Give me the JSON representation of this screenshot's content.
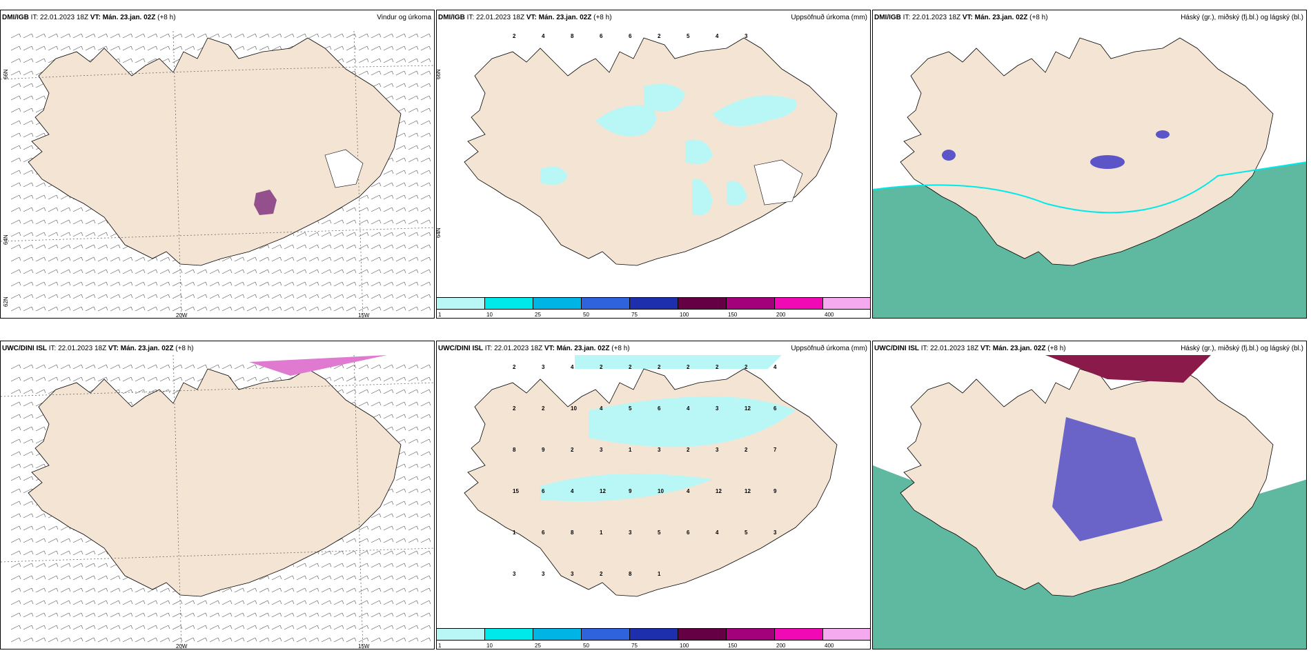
{
  "panels": {
    "p1": {
      "model": "DMI/IGB",
      "it": "IT: 22.01.2023 18Z",
      "vt_label": "VT:",
      "vt_value": "Mán. 23.jan. 02Z",
      "lead": "(+8 h)",
      "title": "Vindur og úrkoma"
    },
    "p2": {
      "model": "DMI/IGB",
      "it": "IT: 22.01.2023 18Z",
      "vt_label": "VT:",
      "vt_value": "Mán. 23.jan. 02Z",
      "lead": "(+8 h)",
      "title": "Uppsöfnuð úrkoma (mm)"
    },
    "p3": {
      "model": "DMI/IGB",
      "it": "IT: 22.01.2023 18Z",
      "vt_label": "VT:",
      "vt_value": "Mán. 23.jan. 02Z",
      "lead": "(+8 h)",
      "title": "Háský (gr.), miðský (fj.bl.) og lágský (bl.)"
    },
    "p4": {
      "model": "UWC/DINI ISL",
      "it": "IT: 22.01.2023 18Z",
      "vt_label": "VT:",
      "vt_value": "Mán. 23.jan. 02Z",
      "lead": "(+8 h)",
      "title": ""
    },
    "p5": {
      "model": "UWC/DINI ISL",
      "it": "IT: 22.01.2023 18Z",
      "vt_label": "VT:",
      "vt_value": "Mán. 23.jan. 02Z",
      "lead": "(+8 h)",
      "title": "Uppsöfnuð úrkoma (mm)"
    },
    "p6": {
      "model": "UWC/DINI ISL",
      "it": "IT: 22.01.2023 18Z",
      "vt_label": "VT:",
      "vt_value": "Mán. 23.jan. 02Z",
      "lead": "(+8 h)",
      "title": "Háský (gr.), miðský (fj.bl.) og lágský (bl.)"
    }
  },
  "axis_labels": {
    "lon_20w": "20W",
    "lon_15w": "15W",
    "lat_66n": "66N",
    "lat_64n": "64N",
    "lat_65n": "65N",
    "lat_62n": "62N"
  },
  "colorbar": {
    "ticks": [
      "1",
      "10",
      "25",
      "50",
      "75",
      "100",
      "150",
      "200",
      "400"
    ],
    "colors": [
      "#b9f7f7",
      "#00e9ea",
      "#00b4e6",
      "#2f62dd",
      "#1e2fae",
      "#660044",
      "#a3007b",
      "#f009b4",
      "#f5aaf0"
    ]
  },
  "precip_labels_p2": [
    "2",
    "4",
    "8",
    "6",
    "6",
    "2",
    "5",
    "4",
    "3"
  ],
  "precip_labels_p5": [
    "2",
    "3",
    "4",
    "2",
    "2",
    "2",
    "2",
    "2",
    "2",
    "4",
    "2",
    "2",
    "10",
    "4",
    "5",
    "6",
    "4",
    "3",
    "12",
    "6",
    "8",
    "9",
    "2",
    "3",
    "1",
    "3",
    "2",
    "3",
    "2",
    "7",
    "15",
    "6",
    "4",
    "12",
    "9",
    "10",
    "4",
    "12",
    "12",
    "9",
    "1",
    "6",
    "8",
    "1",
    "3",
    "5",
    "6",
    "4",
    "5",
    "3",
    "3",
    "3",
    "3",
    "2",
    "8",
    "1"
  ],
  "map_colors": {
    "land": "#f4e4d3",
    "precip_light": "#b9f7f7",
    "cloud_low": "#5fb8a0",
    "cloud_mid": "#5b55c8",
    "cloud_high": "#8a1a4a"
  }
}
